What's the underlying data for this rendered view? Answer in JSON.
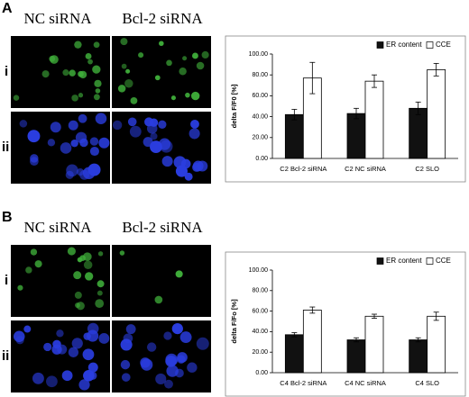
{
  "panels": [
    {
      "label": "A",
      "column_labels": [
        "NC siRNA",
        "Bcl-2 siRNA"
      ],
      "row_labels": [
        "i",
        "ii"
      ]
    },
    {
      "label": "B",
      "column_labels": [
        "NC siRNA",
        "Bcl-2 siRNA"
      ],
      "row_labels": [
        "i",
        "ii"
      ]
    }
  ],
  "chart_data": [
    {
      "type": "bar",
      "y_label": "delta F/F0 [%]",
      "categories": [
        "C2 Bcl-2 siRNA",
        "C2 NC siRNA",
        "C2 SLO"
      ],
      "series": [
        {
          "name": "ER content",
          "color": "#111111",
          "values": [
            42,
            43,
            48
          ],
          "errors": [
            5,
            5,
            6
          ]
        },
        {
          "name": "CCE",
          "color": "#ffffff",
          "values": [
            77,
            74,
            85
          ],
          "errors": [
            15,
            6,
            6
          ]
        }
      ],
      "ylim": [
        0,
        100
      ],
      "yticks": [
        {
          "value": 0,
          "label": "0.00"
        },
        {
          "value": 20,
          "label": "20.00"
        },
        {
          "value": 40,
          "label": "40.00"
        },
        {
          "value": 60,
          "label": "60.00"
        },
        {
          "value": 80,
          "label": "80.00"
        },
        {
          "value": 100,
          "label": "100.00"
        }
      ],
      "grid": false,
      "legend": "top-right"
    },
    {
      "type": "bar",
      "y_label": "delta F/Fo [%]",
      "categories": [
        "C4 Bcl-2 siRNA",
        "C4 NC siRNA",
        "C4 SLO"
      ],
      "series": [
        {
          "name": "ER content",
          "color": "#111111",
          "values": [
            37,
            32,
            32
          ],
          "errors": [
            2,
            2,
            2
          ]
        },
        {
          "name": "CCE",
          "color": "#ffffff",
          "values": [
            61,
            55,
            55
          ],
          "errors": [
            3,
            2,
            4
          ]
        }
      ],
      "ylim": [
        0,
        100
      ],
      "yticks": [
        {
          "value": 0,
          "label": "0.00"
        },
        {
          "value": 20,
          "label": "20.00"
        },
        {
          "value": 40,
          "label": "40.00"
        },
        {
          "value": 60,
          "label": "60.00"
        },
        {
          "value": 80,
          "label": "80.00"
        },
        {
          "value": 100,
          "label": "100.00"
        }
      ],
      "grid": false,
      "legend": "top-right"
    }
  ]
}
